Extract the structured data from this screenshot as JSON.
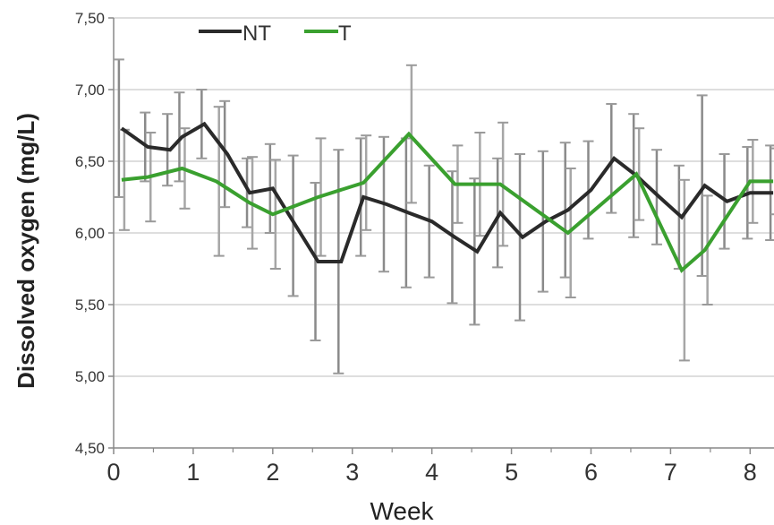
{
  "chart_data": {
    "type": "line",
    "xlabel": "Week",
    "ylabel": "Dissolved oxygen (mg/L)",
    "xlim": [
      0,
      8.3
    ],
    "ylim": [
      4.5,
      7.5
    ],
    "x_ticks": [
      "0",
      "1",
      "2",
      "3",
      "4",
      "5",
      "6",
      "7",
      "8"
    ],
    "y_ticks": [
      "4,50",
      "5,00",
      "5,50",
      "6,00",
      "6,50",
      "7,00",
      "7,50"
    ],
    "grid": true,
    "legend_position": "top-left",
    "series": [
      {
        "name": "NT",
        "color": "#2a2a2a",
        "x": [
          0.1,
          0.43,
          0.71,
          0.86,
          1.14,
          1.43,
          1.71,
          2.0,
          2.29,
          2.57,
          2.86,
          3.14,
          3.43,
          3.71,
          4.0,
          4.29,
          4.57,
          4.86,
          5.14,
          5.43,
          5.71,
          6.0,
          6.29,
          6.57,
          6.86,
          7.14,
          7.43,
          7.71,
          8.0,
          8.29
        ],
        "values": [
          6.73,
          6.6,
          6.58,
          6.67,
          6.76,
          6.55,
          6.28,
          6.31,
          6.05,
          5.8,
          5.8,
          6.25,
          6.2,
          6.14,
          6.08,
          5.97,
          5.87,
          6.14,
          5.97,
          6.08,
          6.16,
          6.3,
          6.52,
          6.4,
          6.25,
          6.11,
          6.33,
          6.22,
          6.28,
          6.28
        ],
        "error": [
          0.48,
          0.24,
          0.25,
          0.31,
          0.24,
          0.37,
          0.24,
          0.31,
          0.49,
          0.55,
          0.78,
          0.41,
          0.47,
          0.52,
          0.39,
          0.46,
          0.51,
          0.38,
          0.58,
          0.49,
          0.47,
          0.34,
          0.38,
          0.43,
          0.33,
          0.36,
          0.63,
          0.33,
          0.32,
          0.33
        ]
      },
      {
        "name": "T",
        "color": "#3aa02f",
        "x": [
          0.1,
          0.43,
          0.86,
          1.29,
          1.71,
          2.0,
          2.57,
          3.14,
          3.71,
          4.29,
          4.57,
          4.86,
          5.71,
          6.57,
          7.14,
          7.43,
          8.0,
          8.29
        ],
        "values": [
          6.37,
          6.39,
          6.45,
          6.36,
          6.21,
          6.13,
          6.25,
          6.35,
          6.69,
          6.34,
          6.34,
          6.34,
          6.0,
          6.41,
          5.74,
          5.88,
          6.36,
          6.36
        ],
        "error": [
          0.35,
          0.31,
          0.28,
          0.52,
          0.32,
          0.38,
          0.41,
          0.33,
          0.48,
          0.27,
          0.36,
          0.43,
          0.45,
          0.32,
          0.63,
          0.38,
          0.29,
          0.23
        ]
      }
    ]
  }
}
